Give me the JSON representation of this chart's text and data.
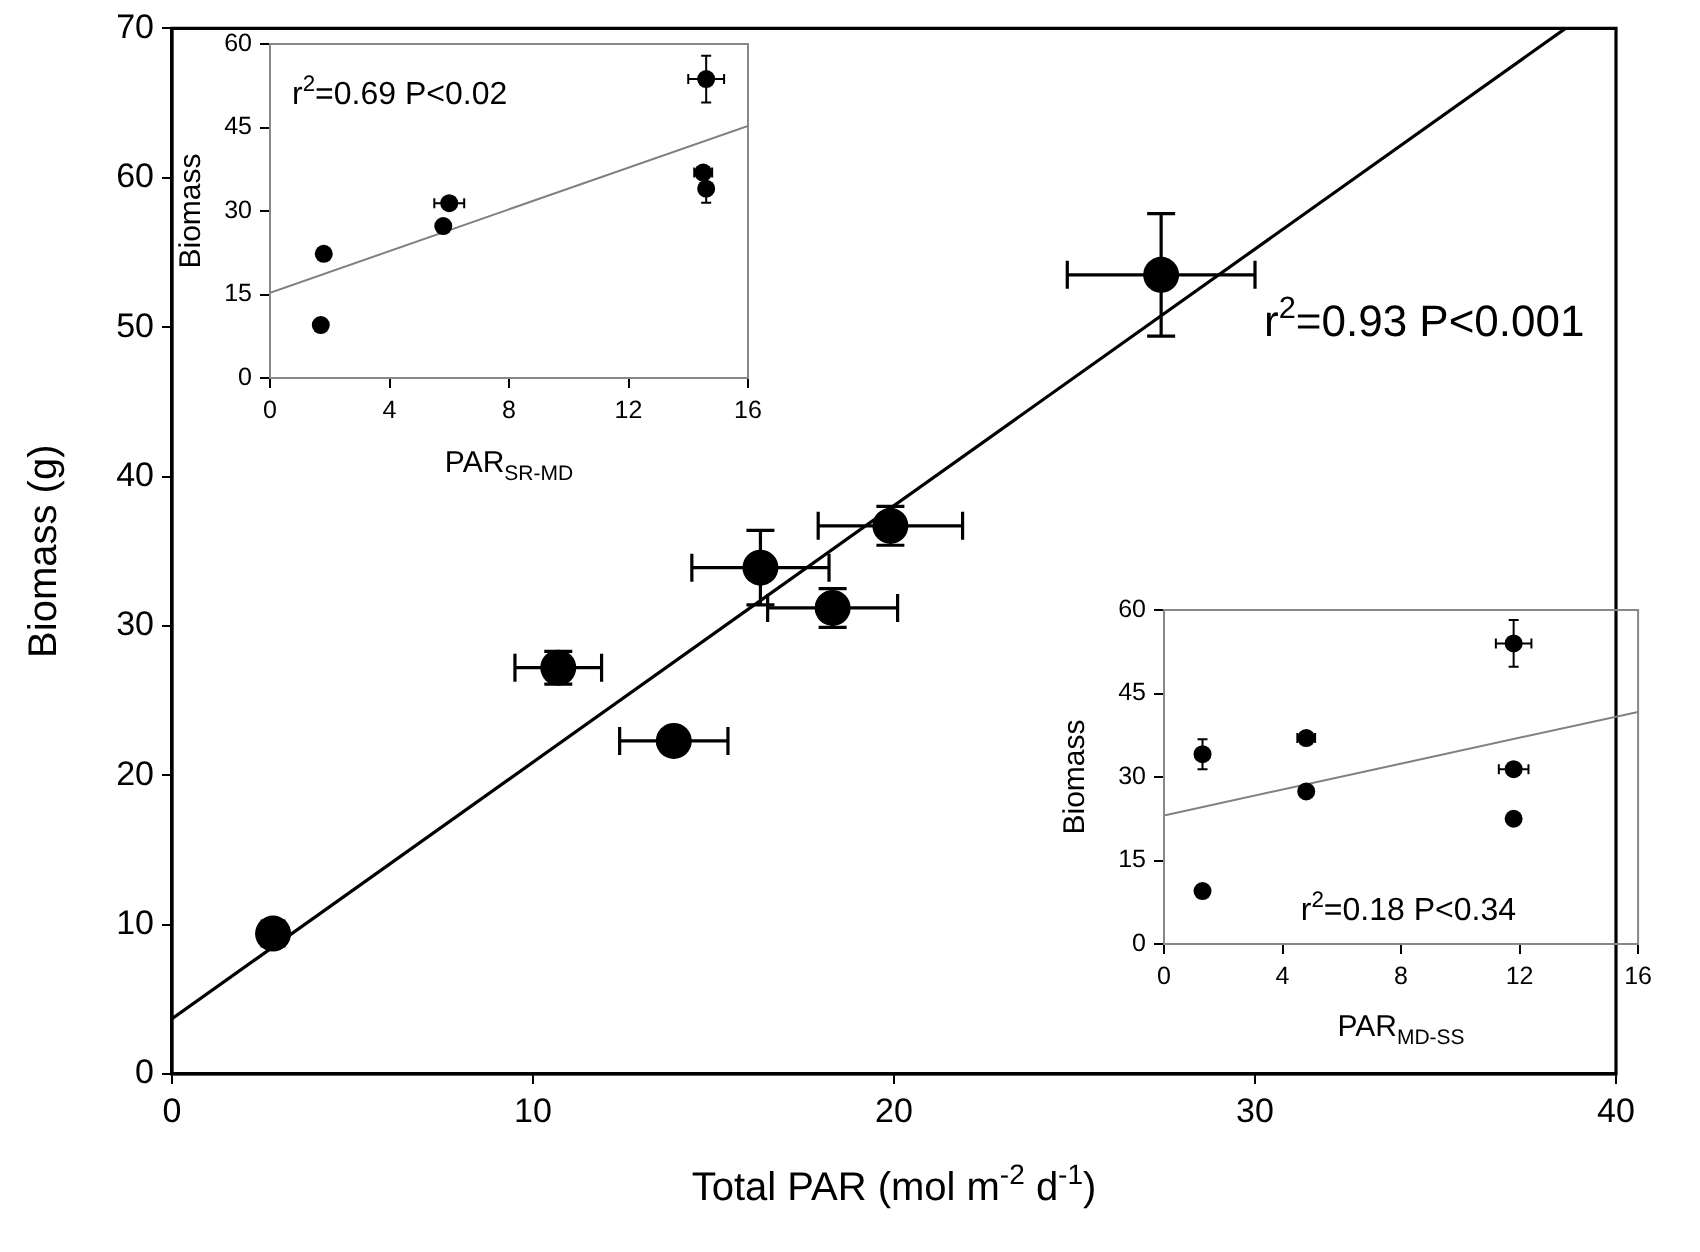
{
  "chart_data": [
    {
      "type": "scatter",
      "xlabel": "Total PAR (mol m$^{-2}$ d$^{-1}$)",
      "ylabel": "Biomass (g)",
      "annotations": [
        "r$^{2}$=0.93 P<0.001"
      ],
      "xlim": [
        0,
        40
      ],
      "ylim": [
        0,
        70
      ],
      "xticks": [
        0,
        10,
        20,
        30,
        40
      ],
      "yticks": [
        0,
        10,
        20,
        30,
        40,
        50,
        60,
        70
      ],
      "marker": "circle",
      "series": [
        {
          "type": "scatter",
          "color": "#000000",
          "x": [
            2.8,
            10.7,
            13.9,
            16.3,
            18.3,
            19.9,
            27.4
          ],
          "values": [
            9.4,
            27.2,
            22.3,
            33.9,
            31.2,
            36.7,
            53.5
          ],
          "errors": [
            0.5,
            1.1,
            0.4,
            2.5,
            1.3,
            1.3,
            4.1
          ],
          "xerrors": [
            0.3,
            1.2,
            1.5,
            1.9,
            1.8,
            2.0,
            2.6
          ]
        },
        {
          "type": "line",
          "color": "#000000",
          "marker": "none",
          "x": [
            0,
            38.6
          ],
          "values": [
            3.7,
            70
          ]
        }
      ]
    },
    {
      "type": "scatter",
      "xlabel": "PAR$_{SR-MD}$",
      "ylabel": "Biomass",
      "annotations": [
        "r$^{2}$=0.69 P<0.02"
      ],
      "xlim": [
        0,
        16
      ],
      "ylim": [
        0,
        60
      ],
      "xticks": [
        0,
        4,
        8,
        12,
        16
      ],
      "yticks": [
        0,
        15,
        30,
        45,
        60
      ],
      "marker": "circle",
      "series": [
        {
          "type": "scatter",
          "color": "#000000",
          "x": [
            1.7,
            1.8,
            5.8,
            6.0,
            14.5,
            14.6,
            14.6
          ],
          "values": [
            9.5,
            22.3,
            27.3,
            31.4,
            36.9,
            34.0,
            53.7
          ],
          "errors": [
            null,
            null,
            null,
            0.5,
            0.6,
            2.5,
            4.2
          ],
          "xerrors": [
            null,
            null,
            null,
            0.5,
            0.3,
            null,
            0.6
          ]
        },
        {
          "type": "line",
          "color": "#808080",
          "marker": "none",
          "x": [
            0,
            16
          ],
          "values": [
            15.3,
            45.3
          ]
        }
      ]
    },
    {
      "type": "scatter",
      "xlabel": "PAR$_{MD-SS}$",
      "ylabel": "Biomass",
      "annotations": [
        "r$^{2}$=0.18 P<0.34"
      ],
      "xlim": [
        0,
        16
      ],
      "ylim": [
        0,
        60
      ],
      "xticks": [
        0,
        4,
        8,
        12,
        16
      ],
      "yticks": [
        0,
        15,
        30,
        45,
        60
      ],
      "marker": "circle",
      "series": [
        {
          "type": "scatter",
          "color": "#000000",
          "x": [
            1.3,
            1.3,
            4.8,
            4.8,
            11.8,
            11.8,
            11.8
          ],
          "values": [
            9.5,
            34.1,
            37.0,
            27.4,
            22.5,
            31.4,
            54.0
          ],
          "errors": [
            null,
            2.7,
            0.6,
            null,
            null,
            null,
            4.2
          ],
          "xerrors": [
            null,
            null,
            0.3,
            null,
            null,
            0.5,
            0.6
          ]
        },
        {
          "type": "line",
          "color": "#808080",
          "marker": "none",
          "x": [
            0,
            16
          ],
          "values": [
            23.1,
            41.7
          ]
        }
      ]
    }
  ]
}
